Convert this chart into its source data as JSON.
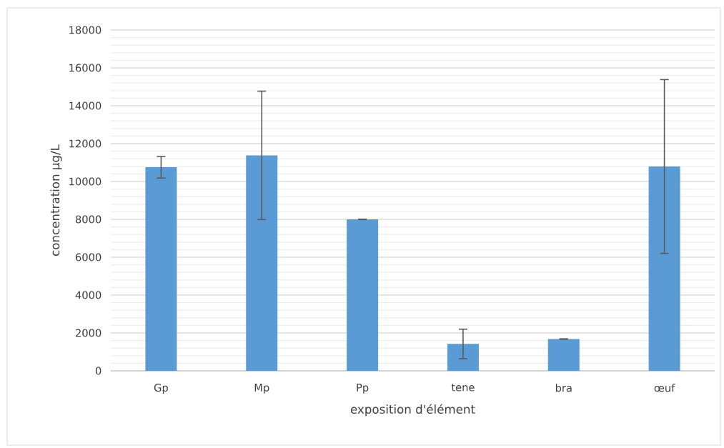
{
  "chart_data": {
    "type": "bar",
    "xlabel": "exposition d'élément",
    "ylabel": "concentration µg/L",
    "categories": [
      "Gp",
      "Mp",
      "Pp",
      "tene",
      "bra",
      "œuf"
    ],
    "values": [
      10750,
      11380,
      8000,
      1420,
      1680,
      10790
    ],
    "errors": [
      570,
      3390,
      10,
      780,
      10,
      4590
    ],
    "color": "#5b9bd5",
    "ylim": [
      0,
      18000
    ],
    "yticks": [
      0,
      2000,
      4000,
      6000,
      8000,
      10000,
      12000,
      14000,
      16000,
      18000
    ],
    "grid": true
  }
}
